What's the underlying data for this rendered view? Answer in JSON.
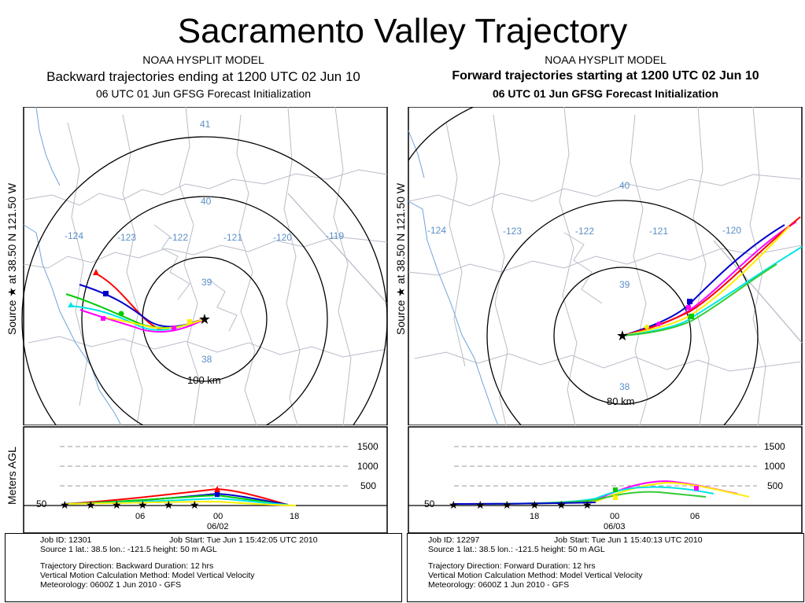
{
  "page_title": "Sacramento Valley Trajectory",
  "left": {
    "model": "NOAA HYSPLIT MODEL",
    "subtitle": "Backward trajectories ending at 1200 UTC 02 Jun 10",
    "forecast": "06 UTC 01 Jun    GFSG  Forecast Initialization",
    "source_label": "Source ★ at 38.50 N 121.50 W",
    "lon_labels": [
      "-124",
      "-123",
      "-122",
      "-121",
      "-120",
      "-119"
    ],
    "lat_labels": [
      "41",
      "40",
      "39",
      "38"
    ],
    "ring_label": "100 km",
    "vert_axis_label": "Meters AGL",
    "vert_ticks": [
      "1500",
      "1000",
      "500",
      "50"
    ],
    "time_ticks": [
      "06",
      "00",
      "18"
    ],
    "time_date": "06/02",
    "job": "Job ID: 12301",
    "job_start": "Job Start: Tue Jun  1 15:42:05 UTC 2010",
    "source_line": "Source 1      lat.: 38.5    lon.: -121.5     height: 50 m AGL",
    "direction": "Trajectory Direction: Backward     Duration: 12 hrs",
    "vertical_method": "Vertical Motion Calculation Method:        Model Vertical Velocity",
    "meteorology": "Meteorology: 0600Z  1 Jun 2010 - GFS"
  },
  "right": {
    "model": "NOAA HYSPLIT MODEL",
    "subtitle": "Forward trajectories starting at 1200 UTC 02 Jun 10",
    "forecast": "06 UTC 01 Jun    GFSG  Forecast Initialization",
    "source_label": "Source ★ at 38.50 N 121.50 W",
    "lon_labels": [
      "-124",
      "-123",
      "-122",
      "-121",
      "-120"
    ],
    "lat_labels": [
      "40",
      "39",
      "38"
    ],
    "ring_label": "80 km",
    "vert_axis_label": "Meters AGL",
    "vert_ticks": [
      "1500",
      "1000",
      "500",
      "50"
    ],
    "time_ticks": [
      "18",
      "00",
      "06"
    ],
    "time_date": "06/03",
    "job": "Job ID: 12297",
    "job_start": "Job Start: Tue Jun  1 15:40:13 UTC 2010",
    "source_line": "Source 1      lat.: 38.5    lon.: -121.5     height: 50 m AGL",
    "direction": "Trajectory Direction: Forward      Duration: 12 hrs",
    "vertical_method": "Vertical Motion Calculation Method:        Model Vertical Velocity",
    "meteorology": "Meteorology: 0600Z  1 Jun 2010 - GFS"
  },
  "colors": {
    "trajectories": [
      "#ff0000",
      "#0000cc",
      "#00cc00",
      "#00e5e5",
      "#ff00ff",
      "#ffee00",
      "#33cc33",
      "#00ffff"
    ],
    "map_lines": "#b8bcc8",
    "coast": "#6fa3d9",
    "grid_labels": "#5b8fc7"
  }
}
